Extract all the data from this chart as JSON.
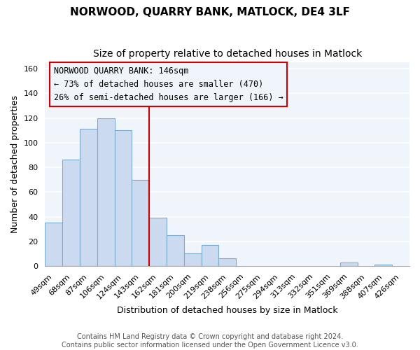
{
  "title": "NORWOOD, QUARRY BANK, MATLOCK, DE4 3LF",
  "subtitle": "Size of property relative to detached houses in Matlock",
  "xlabel": "Distribution of detached houses by size in Matlock",
  "ylabel": "Number of detached properties",
  "categories": [
    "49sqm",
    "68sqm",
    "87sqm",
    "106sqm",
    "124sqm",
    "143sqm",
    "162sqm",
    "181sqm",
    "200sqm",
    "219sqm",
    "238sqm",
    "256sqm",
    "275sqm",
    "294sqm",
    "313sqm",
    "332sqm",
    "351sqm",
    "369sqm",
    "388sqm",
    "407sqm",
    "426sqm"
  ],
  "values": [
    35,
    86,
    111,
    120,
    110,
    70,
    39,
    25,
    10,
    17,
    6,
    0,
    0,
    0,
    0,
    0,
    0,
    3,
    0,
    1,
    0
  ],
  "bar_color": "#ccdaf0",
  "bar_edge_color": "#7aabcc",
  "vline_x_index": 5,
  "vline_color": "#cc0000",
  "ylim": [
    0,
    165
  ],
  "yticks": [
    0,
    20,
    40,
    60,
    80,
    100,
    120,
    140,
    160
  ],
  "annotation_title": "NORWOOD QUARRY BANK: 146sqm",
  "annotation_line1": "← 73% of detached houses are smaller (470)",
  "annotation_line2": "26% of semi-detached houses are larger (166) →",
  "annotation_box_edge": "#cc0000",
  "footer1": "Contains HM Land Registry data © Crown copyright and database right 2024.",
  "footer2": "Contains public sector information licensed under the Open Government Licence v3.0.",
  "background_color": "#ffffff",
  "plot_bg_color": "#f0f4fb",
  "grid_color": "#ffffff",
  "title_fontsize": 11,
  "subtitle_fontsize": 10,
  "axis_label_fontsize": 9,
  "tick_fontsize": 8,
  "footer_fontsize": 7,
  "annotation_fontsize": 8.5
}
